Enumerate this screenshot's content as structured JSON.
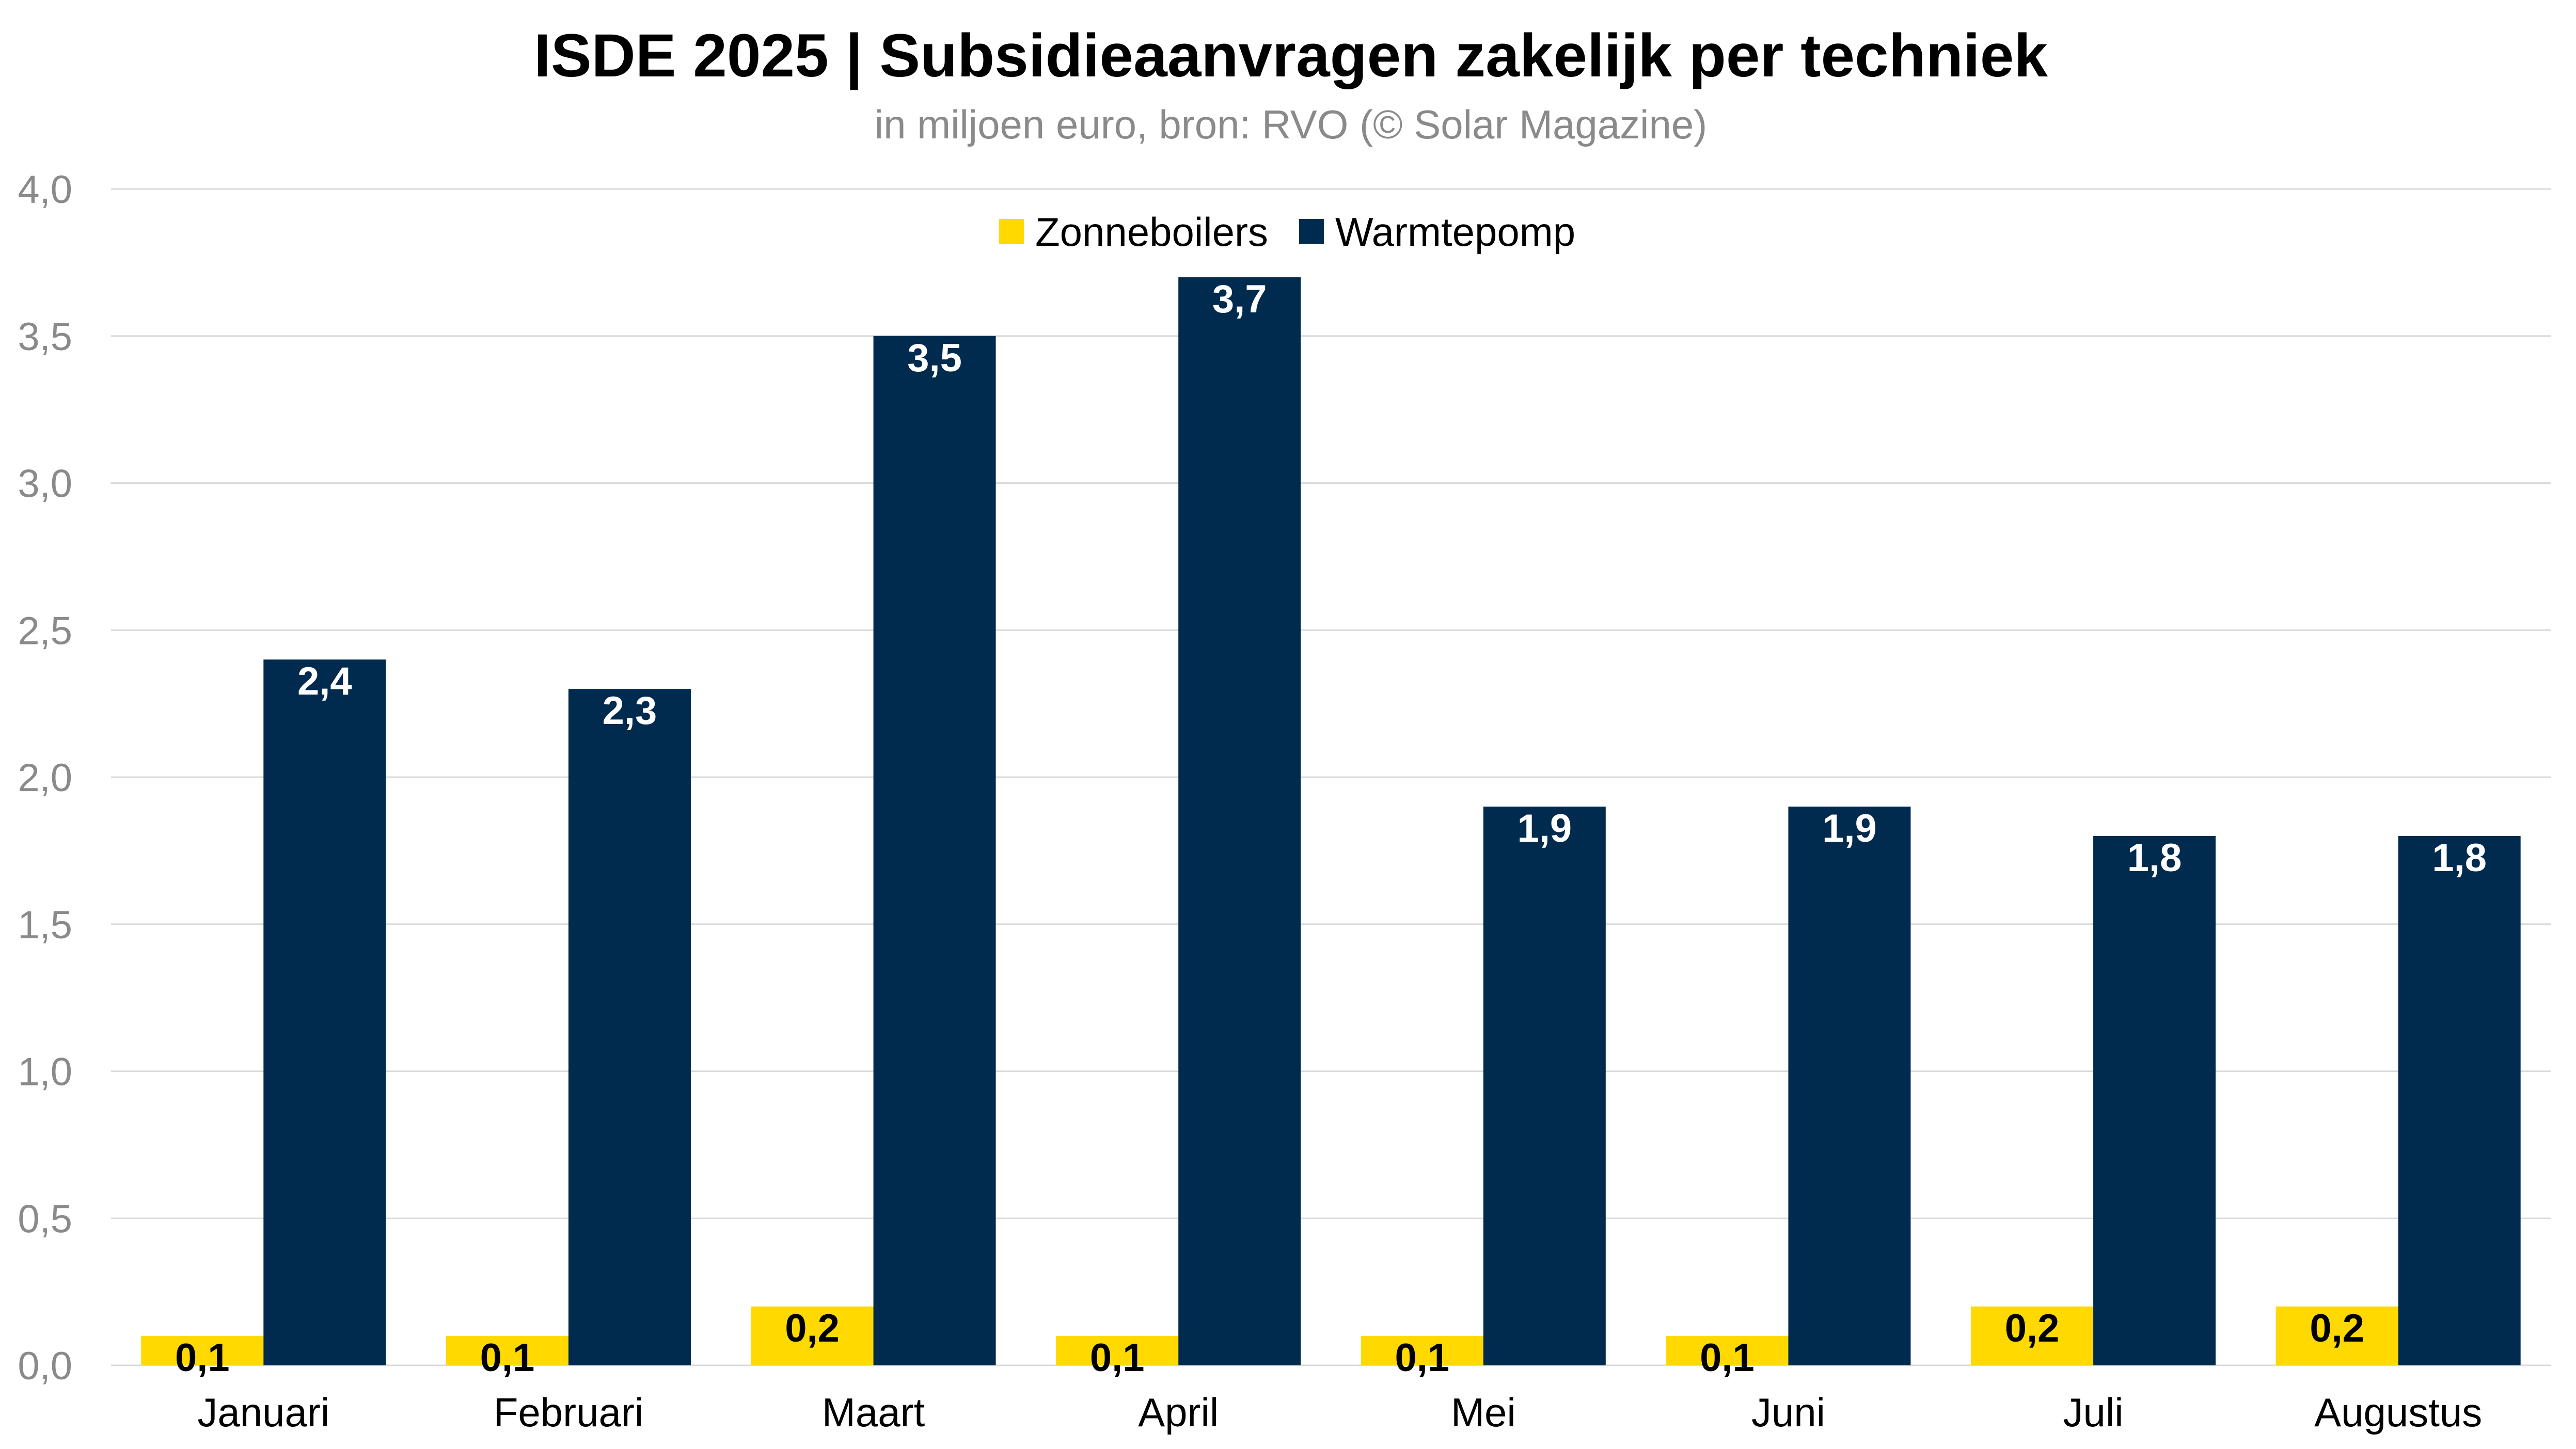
{
  "chart_data": {
    "type": "bar",
    "title": "ISDE 2025 | Subsidieaanvragen zakelijk per techniek",
    "subtitle": "in miljoen euro, bron: RVO (© Solar Magazine)",
    "categories": [
      "Januari",
      "Februari",
      "Maart",
      "April",
      "Mei",
      "Juni",
      "Juli",
      "Augustus"
    ],
    "series": [
      {
        "name": "Zonneboilers",
        "color": "#ffd900",
        "label_color": "#000000",
        "values": [
          0.1,
          0.1,
          0.2,
          0.1,
          0.1,
          0.1,
          0.2,
          0.2
        ],
        "labels": [
          "0,1",
          "0,1",
          "0,2",
          "0,1",
          "0,1",
          "0,1",
          "0,2",
          "0,2"
        ]
      },
      {
        "name": "Warmtepomp",
        "color": "#002b4e",
        "label_color": "#ffffff",
        "values": [
          2.4,
          2.3,
          3.5,
          3.7,
          1.9,
          1.9,
          1.8,
          1.8
        ],
        "labels": [
          "2,4",
          "2,3",
          "3,5",
          "3,7",
          "1,9",
          "1,9",
          "1,8",
          "1,8"
        ]
      }
    ],
    "ylim": [
      0,
      4
    ],
    "yticks": [
      0,
      0.5,
      1,
      1.5,
      2,
      2.5,
      3,
      3.5,
      4
    ],
    "ytick_labels": [
      "0,0",
      "0,5",
      "1,0",
      "1,5",
      "2,0",
      "2,5",
      "3,0",
      "3,5",
      "4,0"
    ],
    "grid": true,
    "legend_position": "top-center"
  }
}
